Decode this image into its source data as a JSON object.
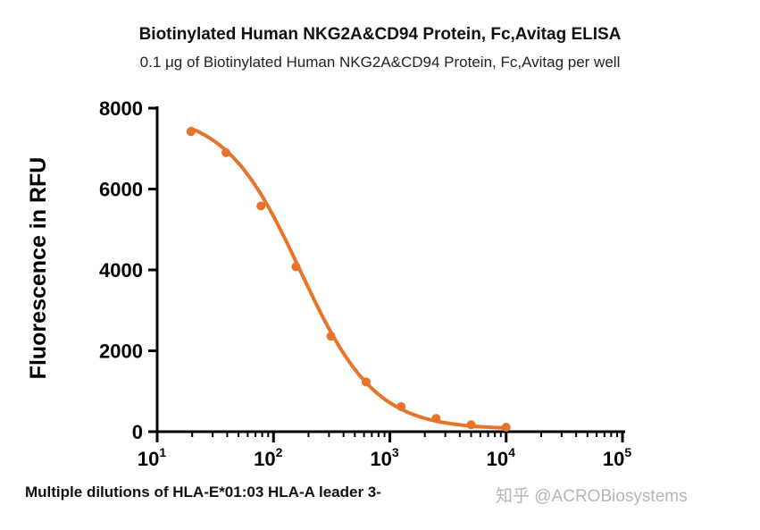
{
  "chart_data": {
    "type": "line",
    "title": "Biotinylated Human NKG2A&CD94 Protein, Fc,Avitag ELISA",
    "subtitle": "0.1 μg of Biotinylated Human NKG2A&CD94 Protein, Fc,Avitag per well",
    "xlabel": "Multiple dilutions of HLA-E*01:03 HLA-A leader 3-",
    "ylabel": "Fluorescence in RFU",
    "xscale": "log",
    "xlim": [
      10,
      100000
    ],
    "ylim": [
      0,
      8000
    ],
    "y_ticks": [
      "0",
      "2000",
      "4000",
      "6000",
      "8000"
    ],
    "x_ticks": [
      {
        "base": "10",
        "exp": "1"
      },
      {
        "base": "10",
        "exp": "2"
      },
      {
        "base": "10",
        "exp": "3"
      },
      {
        "base": "10",
        "exp": "4"
      },
      {
        "base": "10",
        "exp": "5"
      }
    ],
    "series": [
      {
        "name": "HLA-E*01:03",
        "color": "#e8732a",
        "x": [
          19.5,
          39,
          78,
          156,
          312,
          625,
          1250,
          2500,
          5000,
          10000
        ],
        "y": [
          7420,
          6900,
          5580,
          4080,
          2360,
          1230,
          620,
          330,
          170,
          110
        ]
      }
    ],
    "fit": {
      "top": 7900,
      "bottom": 60,
      "ic50": 170,
      "hill": 1.35
    }
  },
  "watermark": "知乎 @ACROBiosystems"
}
